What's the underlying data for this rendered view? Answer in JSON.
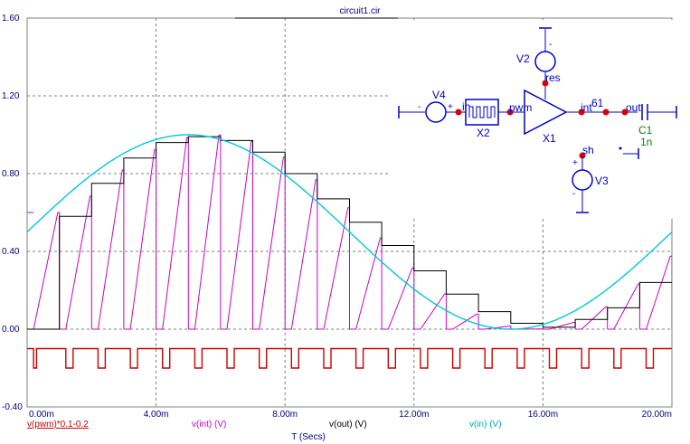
{
  "window": {
    "title": "circuit1.cir"
  },
  "chart_data": {
    "type": "line",
    "xlabel": "T (Secs)",
    "x_ticks": [
      "0.00m",
      "4.00m",
      "8.00m",
      "12.00m",
      "16.00m",
      "20.00m"
    ],
    "y_ticks": [
      "1.60",
      "1.20",
      "0.80",
      "0.40",
      "0.00",
      "-0.40"
    ],
    "xlim": [
      0,
      0.02
    ],
    "ylim": [
      -0.4,
      1.6
    ],
    "grid": true,
    "legend_placement": "bottom",
    "series": [
      {
        "name": "v(pwm)*0.1-0.2",
        "color": "#cc0000",
        "period": 0.001,
        "low": -0.2,
        "high": -0.1,
        "start_offset": 0.0002,
        "duty": [
          0.33,
          0.8,
          0.8,
          0.8,
          0.8,
          0.8,
          0.8,
          0.8,
          0.8,
          0.8,
          0.8,
          0.8,
          0.8,
          0.8,
          0.8,
          0.8,
          0.8,
          0.8,
          0.8,
          0.8
        ]
      },
      {
        "name": "v(int) (V)",
        "color": "#cc00cc",
        "period": 0.001,
        "sample_every": 0.001,
        "sample_offset": 0.0002
      },
      {
        "name": "v(out) (V)",
        "color": "#000000",
        "x": [
          0,
          0.001,
          0.001,
          0.002,
          0.002,
          0.003,
          0.003,
          0.004,
          0.004,
          0.005,
          0.005,
          0.006,
          0.006,
          0.007,
          0.007,
          0.008,
          0.008,
          0.009,
          0.009,
          0.01,
          0.01,
          0.011,
          0.011,
          0.012,
          0.012,
          0.013,
          0.013,
          0.014,
          0.014,
          0.015,
          0.015,
          0.016,
          0.016,
          0.017,
          0.017,
          0.018,
          0.018,
          0.019,
          0.019,
          0.02
        ],
        "y": [
          0,
          0,
          0.58,
          0.58,
          0.75,
          0.75,
          0.88,
          0.88,
          0.96,
          0.96,
          0.99,
          0.99,
          0.97,
          0.97,
          0.91,
          0.91,
          0.8,
          0.8,
          0.67,
          0.67,
          0.55,
          0.55,
          0.43,
          0.43,
          0.3,
          0.3,
          0.18,
          0.18,
          0.09,
          0.09,
          0.03,
          0.03,
          0.01,
          0.01,
          0.05,
          0.05,
          0.11,
          0.11,
          0.24,
          0.24
        ]
      },
      {
        "name": "v(in) (V)",
        "color": "#00c8d8",
        "function": "0.5 + 0.5*sin(2*pi*50*t)"
      }
    ]
  },
  "schematic": {
    "V4": "V4",
    "V2": "V2",
    "V3": "V3",
    "X2": "X2",
    "X1": "X1",
    "C1": "C1",
    "C1_value": "1n",
    "net_in": "in",
    "net_pwm": "pwm",
    "net_int": "int",
    "net_61": "61",
    "net_out": "out",
    "net_res": "res",
    "net_sh": "sh",
    "plus": "+",
    "minus": "-"
  }
}
